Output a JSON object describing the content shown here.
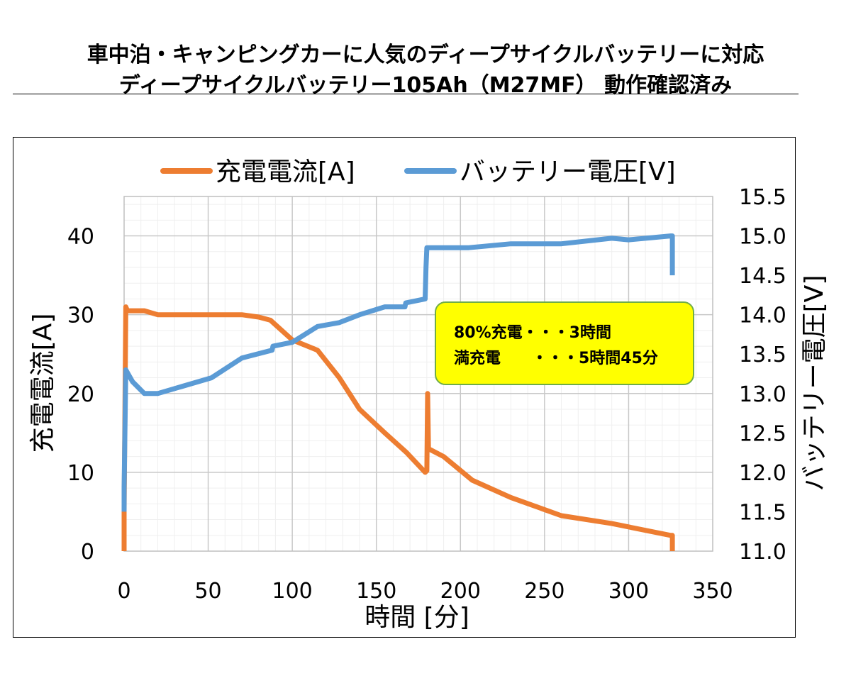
{
  "page": {
    "title_line1": "車中泊・キャンピングカーに人気のディープサイクルバッテリーに対応",
    "title_line2": "ディープサイクルバッテリー105Ah（M27MF） 動作確認済み"
  },
  "chart_data": {
    "type": "line",
    "xlabel": "時間 [分]",
    "ylabel_left": "充電電流[A]",
    "ylabel_right": "バッテリー電圧[V]",
    "xlim": [
      0,
      350
    ],
    "xticks": [
      0,
      50,
      100,
      150,
      200,
      250,
      300,
      350
    ],
    "ylim_left": [
      0,
      45
    ],
    "yticks_left": [
      0,
      10,
      20,
      30,
      40
    ],
    "ylim_right": [
      11.0,
      15.5
    ],
    "yticks_right": [
      "11.0",
      "11.5",
      "12.0",
      "12.5",
      "13.0",
      "13.5",
      "14.0",
      "14.5",
      "15.0",
      "15.5"
    ],
    "grid": true,
    "legend_position": "top",
    "series": [
      {
        "name": "充電電流[A]",
        "axis": "left",
        "color": "#ED7D31",
        "x": [
          0,
          0,
          1,
          2,
          12,
          20,
          50,
          70,
          80,
          87,
          100,
          115,
          128,
          140,
          155,
          168,
          179,
          180,
          180.5,
          181,
          190,
          207,
          230,
          260,
          290,
          325,
          326,
          326
        ],
        "y": [
          0,
          5,
          31,
          30.5,
          30.5,
          30,
          30,
          30,
          29.7,
          29.3,
          26.8,
          25.5,
          22,
          18,
          15,
          12.5,
          10,
          10.2,
          20,
          13,
          12,
          9,
          6.8,
          4.5,
          3.5,
          2,
          2,
          0
        ]
      },
      {
        "name": "バッテリー電圧[V]",
        "axis": "right",
        "color": "#5B9BD5",
        "x": [
          0,
          0,
          1,
          5,
          12,
          20,
          52,
          70,
          88,
          88.5,
          100,
          115,
          128,
          140,
          155,
          167,
          167.5,
          179,
          179.5,
          180,
          205,
          230,
          260,
          290,
          300,
          325,
          326,
          326
        ],
        "y": [
          11.5,
          11.8,
          13.3,
          13.15,
          13.0,
          13.0,
          13.2,
          13.45,
          13.55,
          13.6,
          13.65,
          13.85,
          13.9,
          14.0,
          14.1,
          14.1,
          14.15,
          14.2,
          14.6,
          14.85,
          14.85,
          14.9,
          14.9,
          14.97,
          14.95,
          15.0,
          15.0,
          14.5
        ]
      }
    ],
    "annotation": {
      "line1": "80%充電・・・3時間",
      "line2": "満充電　　・・・5時間45分",
      "background": "#FFFF00",
      "border": "#70AD47"
    }
  }
}
